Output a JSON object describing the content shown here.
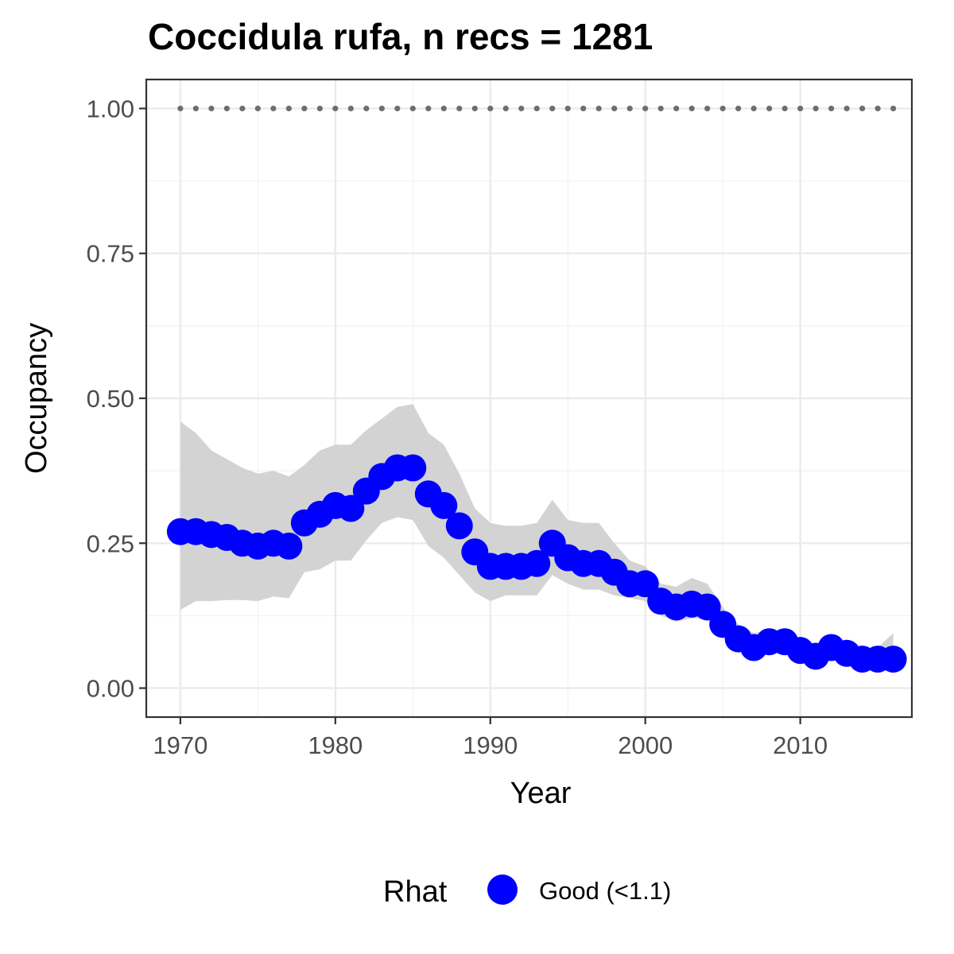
{
  "chart_data": {
    "type": "line",
    "title": "Coccidula rufa, n recs = 1281",
    "xlabel": "Year",
    "ylabel": "Occupancy",
    "xlim": [
      1967.8,
      2017.2
    ],
    "ylim": [
      -0.05,
      1.05
    ],
    "x_ticks": [
      1970,
      1980,
      1990,
      2000,
      2010
    ],
    "x_tick_labels": [
      "1970",
      "1980",
      "1990",
      "2000",
      "2010"
    ],
    "y_ticks": [
      0.0,
      0.25,
      0.5,
      0.75,
      1.0
    ],
    "y_tick_labels": [
      "0.00",
      "0.25",
      "0.50",
      "0.75",
      "1.00"
    ],
    "grid": true,
    "x": [
      1970,
      1971,
      1972,
      1973,
      1974,
      1975,
      1976,
      1977,
      1978,
      1979,
      1980,
      1981,
      1982,
      1983,
      1984,
      1985,
      1986,
      1987,
      1988,
      1989,
      1990,
      1991,
      1992,
      1993,
      1994,
      1995,
      1996,
      1997,
      1998,
      1999,
      2000,
      2001,
      2002,
      2003,
      2004,
      2005,
      2006,
      2007,
      2008,
      2009,
      2010,
      2011,
      2012,
      2013,
      2014,
      2015,
      2016
    ],
    "series": [
      {
        "name": "Good (<1.1)",
        "color": "#0000ff",
        "values": [
          0.27,
          0.27,
          0.265,
          0.26,
          0.25,
          0.245,
          0.25,
          0.245,
          0.285,
          0.3,
          0.315,
          0.31,
          0.34,
          0.365,
          0.38,
          0.38,
          0.335,
          0.315,
          0.28,
          0.235,
          0.21,
          0.21,
          0.21,
          0.215,
          0.25,
          0.225,
          0.215,
          0.215,
          0.2,
          0.18,
          0.18,
          0.15,
          0.14,
          0.145,
          0.14,
          0.11,
          0.085,
          0.07,
          0.08,
          0.08,
          0.065,
          0.055,
          0.07,
          0.06,
          0.05,
          0.05,
          0.05
        ]
      }
    ],
    "ci_lower": [
      0.135,
      0.15,
      0.15,
      0.152,
      0.152,
      0.15,
      0.158,
      0.155,
      0.2,
      0.205,
      0.22,
      0.22,
      0.255,
      0.285,
      0.295,
      0.29,
      0.245,
      0.225,
      0.195,
      0.165,
      0.15,
      0.16,
      0.16,
      0.16,
      0.195,
      0.18,
      0.17,
      0.17,
      0.16,
      0.155,
      0.15,
      0.125,
      0.115,
      0.12,
      0.12,
      0.09,
      0.07,
      0.06,
      0.065,
      0.065,
      0.055,
      0.045,
      0.055,
      0.05,
      0.04,
      0.04,
      0.04
    ],
    "ci_upper": [
      0.46,
      0.44,
      0.41,
      0.395,
      0.38,
      0.37,
      0.375,
      0.365,
      0.385,
      0.41,
      0.42,
      0.42,
      0.445,
      0.465,
      0.485,
      0.49,
      0.44,
      0.42,
      0.37,
      0.31,
      0.285,
      0.28,
      0.28,
      0.285,
      0.325,
      0.29,
      0.285,
      0.285,
      0.25,
      0.22,
      0.21,
      0.18,
      0.175,
      0.19,
      0.18,
      0.14,
      0.11,
      0.095,
      0.1,
      0.1,
      0.085,
      0.075,
      0.09,
      0.08,
      0.07,
      0.07,
      0.095
    ],
    "reference_line": {
      "y": 1.0,
      "from": 1970,
      "to": 2016,
      "style": "dotted",
      "color": "#6e6e6e"
    },
    "ci_color": "#d3d3d3",
    "legend": {
      "title": "Rhat",
      "position": "bottom",
      "items": [
        {
          "label": "Good (<1.1)",
          "color": "#0000ff"
        }
      ]
    }
  }
}
